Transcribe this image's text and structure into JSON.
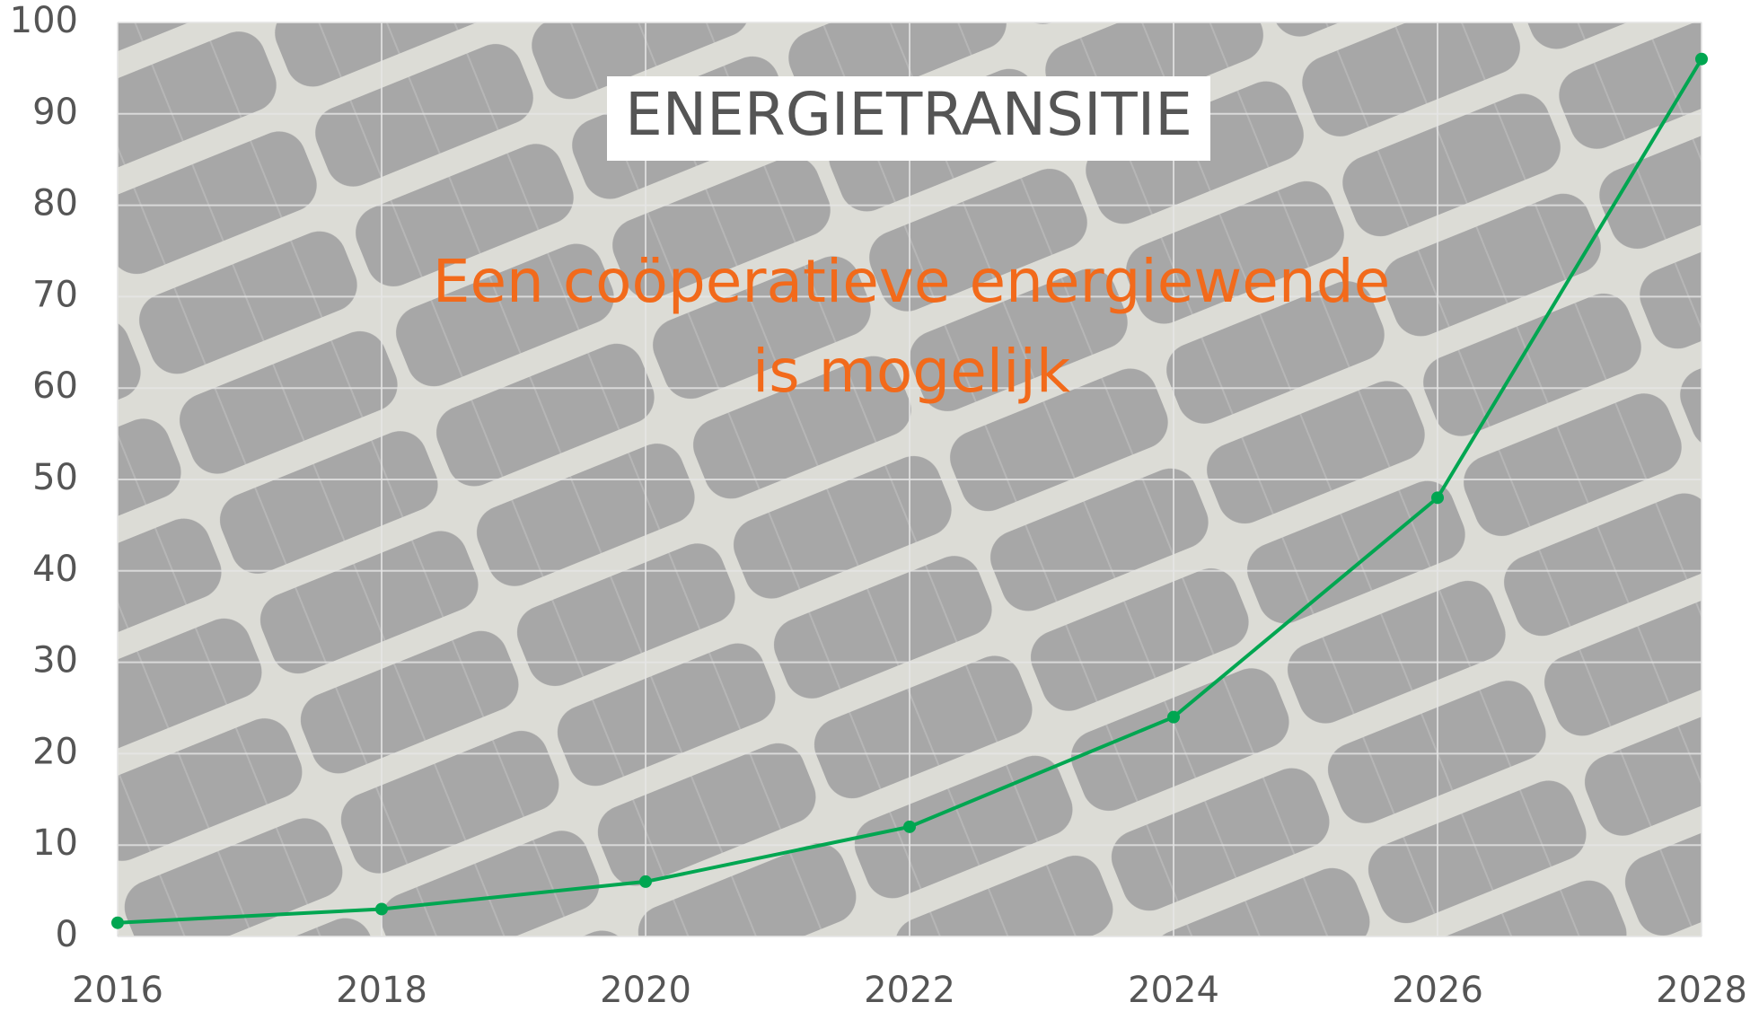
{
  "chart_data": {
    "type": "line",
    "title": "ENERGIETRANSITIE",
    "annotation": [
      "Een coöperatieve energiewende",
      "is mogelijk"
    ],
    "x": [
      2016,
      2018,
      2020,
      2022,
      2024,
      2026,
      2028
    ],
    "values": [
      1.5,
      3,
      6,
      12,
      24,
      48,
      96
    ],
    "color": "#00a651",
    "annotation_color": "#f26a1b",
    "xlim": [
      2016,
      2028
    ],
    "xticks": [
      2016,
      2018,
      2020,
      2022,
      2024,
      2026,
      2028
    ],
    "ylim": [
      0,
      100
    ],
    "yticks": [
      0,
      10,
      20,
      30,
      40,
      50,
      60,
      70,
      80,
      90,
      100
    ],
    "grid": true
  }
}
